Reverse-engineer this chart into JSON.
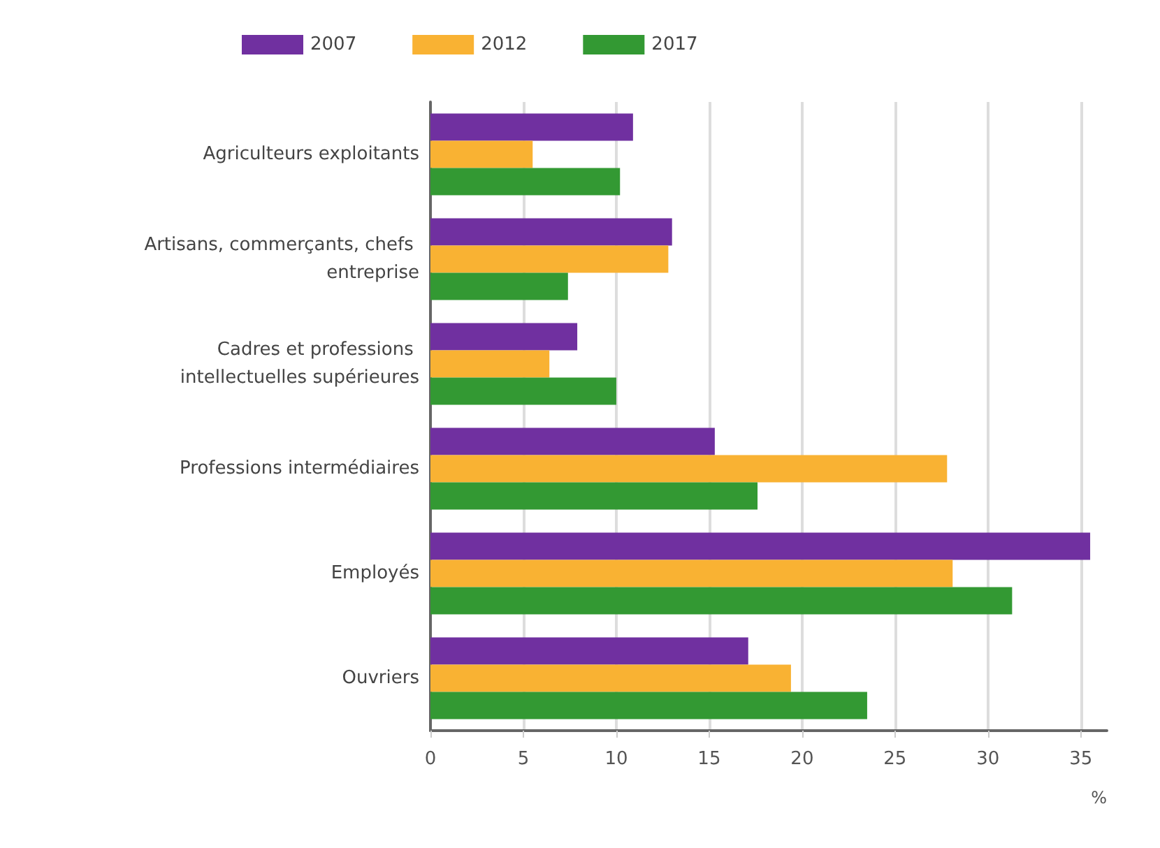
{
  "chart_data": {
    "type": "bar",
    "orientation": "horizontal",
    "xlabel": "%",
    "categories": [
      "Agriculteurs exploitants",
      "Artisans, commerçants, chefs entreprise",
      "Cadres et professions intellectuelles supérieures",
      "Professions intermédiaires",
      "Employés",
      "Ouvriers"
    ],
    "series": [
      {
        "name": "2007",
        "color": "#7030a0",
        "values": [
          10.9,
          13.0,
          7.9,
          15.3,
          35.5,
          17.1
        ]
      },
      {
        "name": "2012",
        "color": "#f9b233",
        "values": [
          5.5,
          12.8,
          6.4,
          27.8,
          28.1,
          19.4
        ]
      },
      {
        "name": "2017",
        "color": "#339933",
        "values": [
          10.2,
          7.4,
          10.0,
          17.6,
          31.3,
          23.5
        ]
      }
    ],
    "xlim": [
      0,
      36.4
    ],
    "xticks": [
      0,
      5,
      10,
      15,
      20,
      25,
      30,
      35
    ],
    "grid": "x",
    "legend": "top"
  }
}
